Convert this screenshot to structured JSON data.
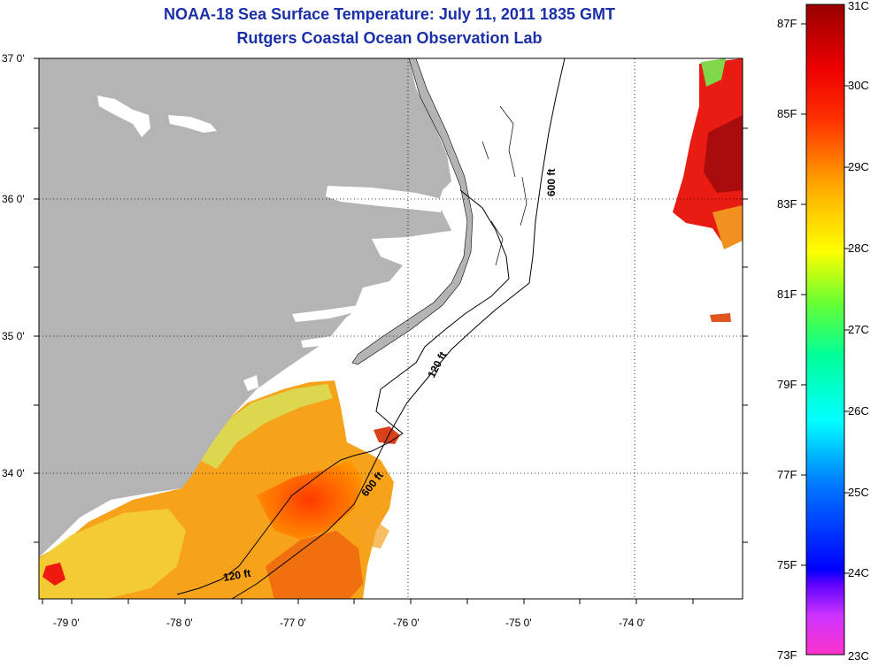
{
  "title": {
    "line1": "NOAA-18 Sea Surface Temperature:  July 11, 2011 1835 GMT",
    "line2": "Rutgers Coastal Ocean Observation Lab"
  },
  "map": {
    "lat_labels": [
      "37 0'",
      "36 0'",
      "35 0'",
      "34 0'"
    ],
    "lon_labels": [
      "-79 0'",
      "-78 0'",
      "-77 0'",
      "-76 0'",
      "-75 0'",
      "-74 0'"
    ],
    "contour_labels": [
      "600 ft",
      "120 ft",
      "600 ft",
      "120 ft"
    ],
    "colors": {
      "land": "#b4b4b4",
      "ocean": "#ffffff",
      "contour": "#000000"
    }
  },
  "colorbar": {
    "fahrenheit_labels": [
      "87F",
      "85F",
      "83F",
      "81F",
      "79F",
      "77F",
      "75F",
      "73F"
    ],
    "celsius_labels": [
      "31C",
      "30C",
      "29C",
      "28C",
      "27C",
      "26C",
      "25C",
      "24C",
      "23C"
    ],
    "stops": [
      "#ff33cc",
      "#9900ff",
      "#0000ff",
      "#0088ff",
      "#00ffff",
      "#00ff99",
      "#aaff00",
      "#ffff00",
      "#ffaa00",
      "#ff5500",
      "#ff0000",
      "#cc0000",
      "#990000"
    ]
  }
}
